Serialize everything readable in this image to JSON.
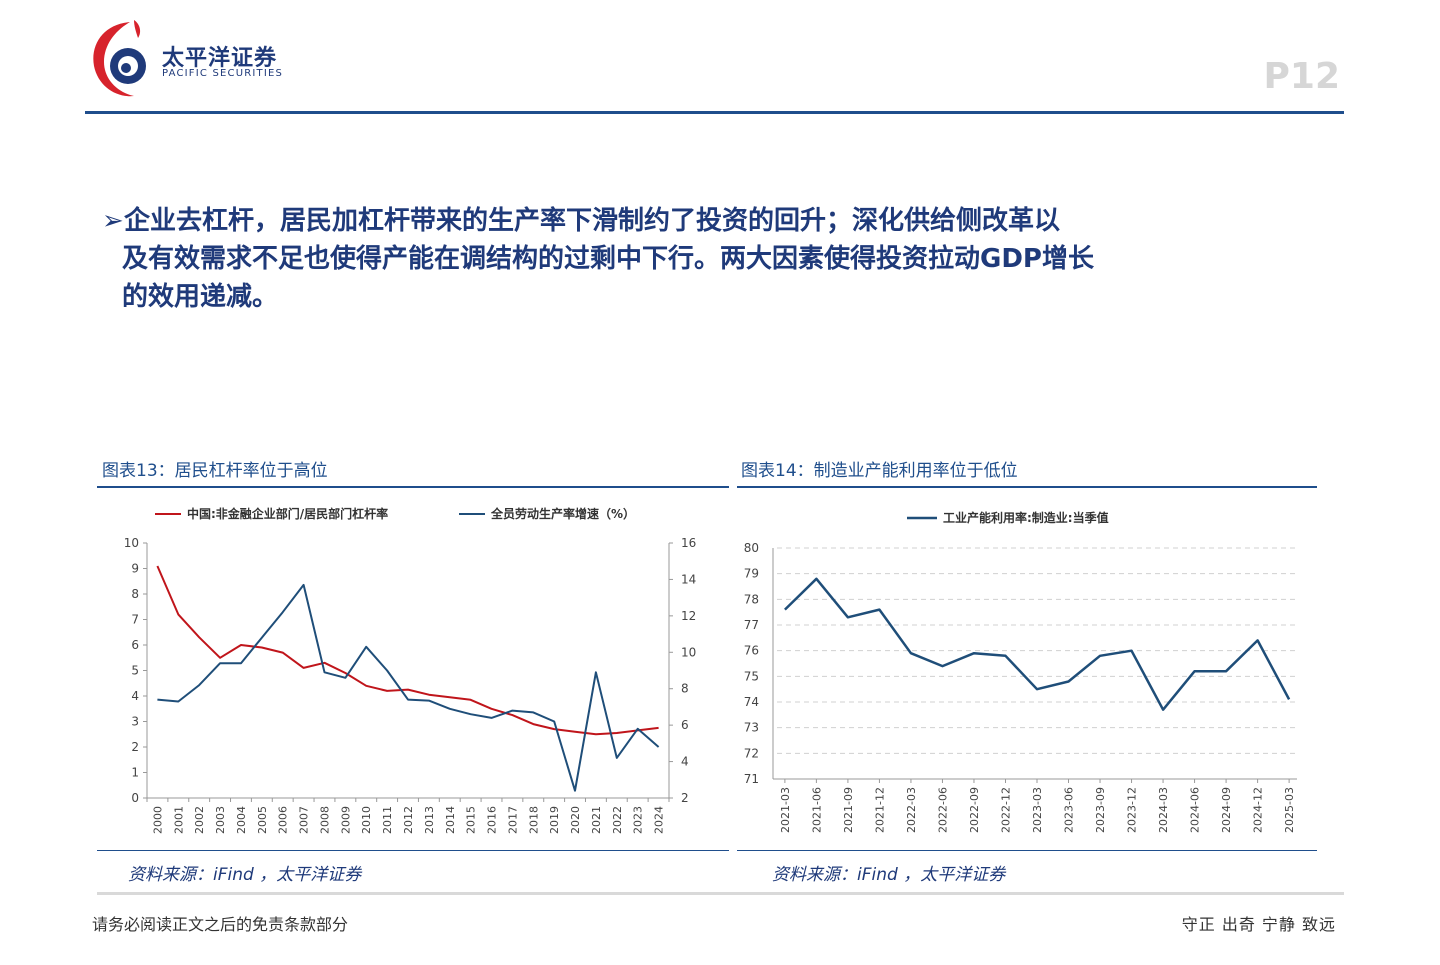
{
  "header": {
    "logo_cn": "太平洋证券",
    "logo_en": "PACIFIC SECURITIES",
    "page": "P12"
  },
  "bullet": {
    "line1": "企业去杠杆，居民加杠杆带来的生产率下滑制约了投资的回升；深化供给侧改革以",
    "line2": "及有效需求不足也使得产能在调结构的过剩中下行。两大因素使得投资拉动GDP增长",
    "line3": "的效用递减。"
  },
  "figures": {
    "fig13_title": "图表13：居民杠杆率位于高位",
    "fig14_title": "图表14：制造业产能利用率位于低位",
    "source13": "资料来源：iFind ，太平洋证券",
    "source14": "资料来源：iFind ，太平洋证券"
  },
  "footer": {
    "left": "请务必阅读正文之后的免责条款部分",
    "right": "守正 出奇 宁静 致远"
  },
  "colors": {
    "red": "#c0151b",
    "blue": "#1f4e79",
    "brand": "#1f3a7a"
  },
  "chart_data": [
    {
      "type": "line",
      "x": [
        "2000",
        "2001",
        "2002",
        "2003",
        "2004",
        "2005",
        "2006",
        "2007",
        "2008",
        "2009",
        "2010",
        "2011",
        "2012",
        "2013",
        "2014",
        "2015",
        "2016",
        "2017",
        "2018",
        "2019",
        "2020",
        "2021",
        "2022",
        "2023",
        "2024"
      ],
      "series": [
        {
          "name": "中国:非金融企业部门/居民部门杠杆率",
          "axis": "left",
          "color": "#c0151b",
          "values": [
            9.1,
            7.2,
            6.3,
            5.5,
            6.0,
            5.9,
            5.7,
            5.1,
            5.3,
            4.9,
            4.4,
            4.2,
            4.25,
            4.05,
            3.95,
            3.85,
            3.5,
            3.25,
            2.9,
            2.7,
            2.6,
            2.5,
            2.55,
            2.65,
            2.75
          ]
        },
        {
          "name": "全员劳动生产率增速（%）",
          "axis": "right",
          "color": "#1f4e79",
          "values": [
            7.4,
            7.3,
            8.2,
            9.4,
            9.4,
            10.8,
            12.2,
            13.7,
            8.9,
            8.6,
            10.3,
            9.0,
            7.4,
            7.35,
            6.9,
            6.6,
            6.4,
            6.8,
            6.7,
            6.2,
            2.4,
            8.9,
            4.2,
            5.8,
            4.8
          ]
        }
      ],
      "yleft_range": [
        0,
        10
      ],
      "yright_range": [
        2,
        16
      ],
      "yleft_ticks": [
        0,
        1,
        2,
        3,
        4,
        5,
        6,
        7,
        8,
        9,
        10
      ],
      "yright_ticks": [
        2,
        4,
        6,
        8,
        10,
        12,
        14,
        16
      ],
      "legend": "top",
      "grid": false
    },
    {
      "type": "line",
      "x": [
        "2021-03",
        "2021-06",
        "2021-09",
        "2021-12",
        "2022-03",
        "2022-06",
        "2022-09",
        "2022-12",
        "2023-03",
        "2023-06",
        "2023-09",
        "2023-12",
        "2024-03",
        "2024-06",
        "2024-09",
        "2024-12",
        "2025-03"
      ],
      "series": [
        {
          "name": "工业产能利用率:制造业:当季值",
          "color": "#1f4e79",
          "values": [
            77.6,
            78.8,
            77.3,
            77.6,
            75.9,
            75.4,
            75.9,
            75.8,
            74.5,
            74.8,
            75.8,
            76.0,
            73.7,
            75.2,
            75.2,
            76.4,
            74.1
          ]
        }
      ],
      "y_range": [
        71,
        80
      ],
      "y_ticks": [
        71,
        72,
        73,
        74,
        75,
        76,
        77,
        78,
        79,
        80
      ],
      "legend": "top",
      "grid": true
    }
  ]
}
